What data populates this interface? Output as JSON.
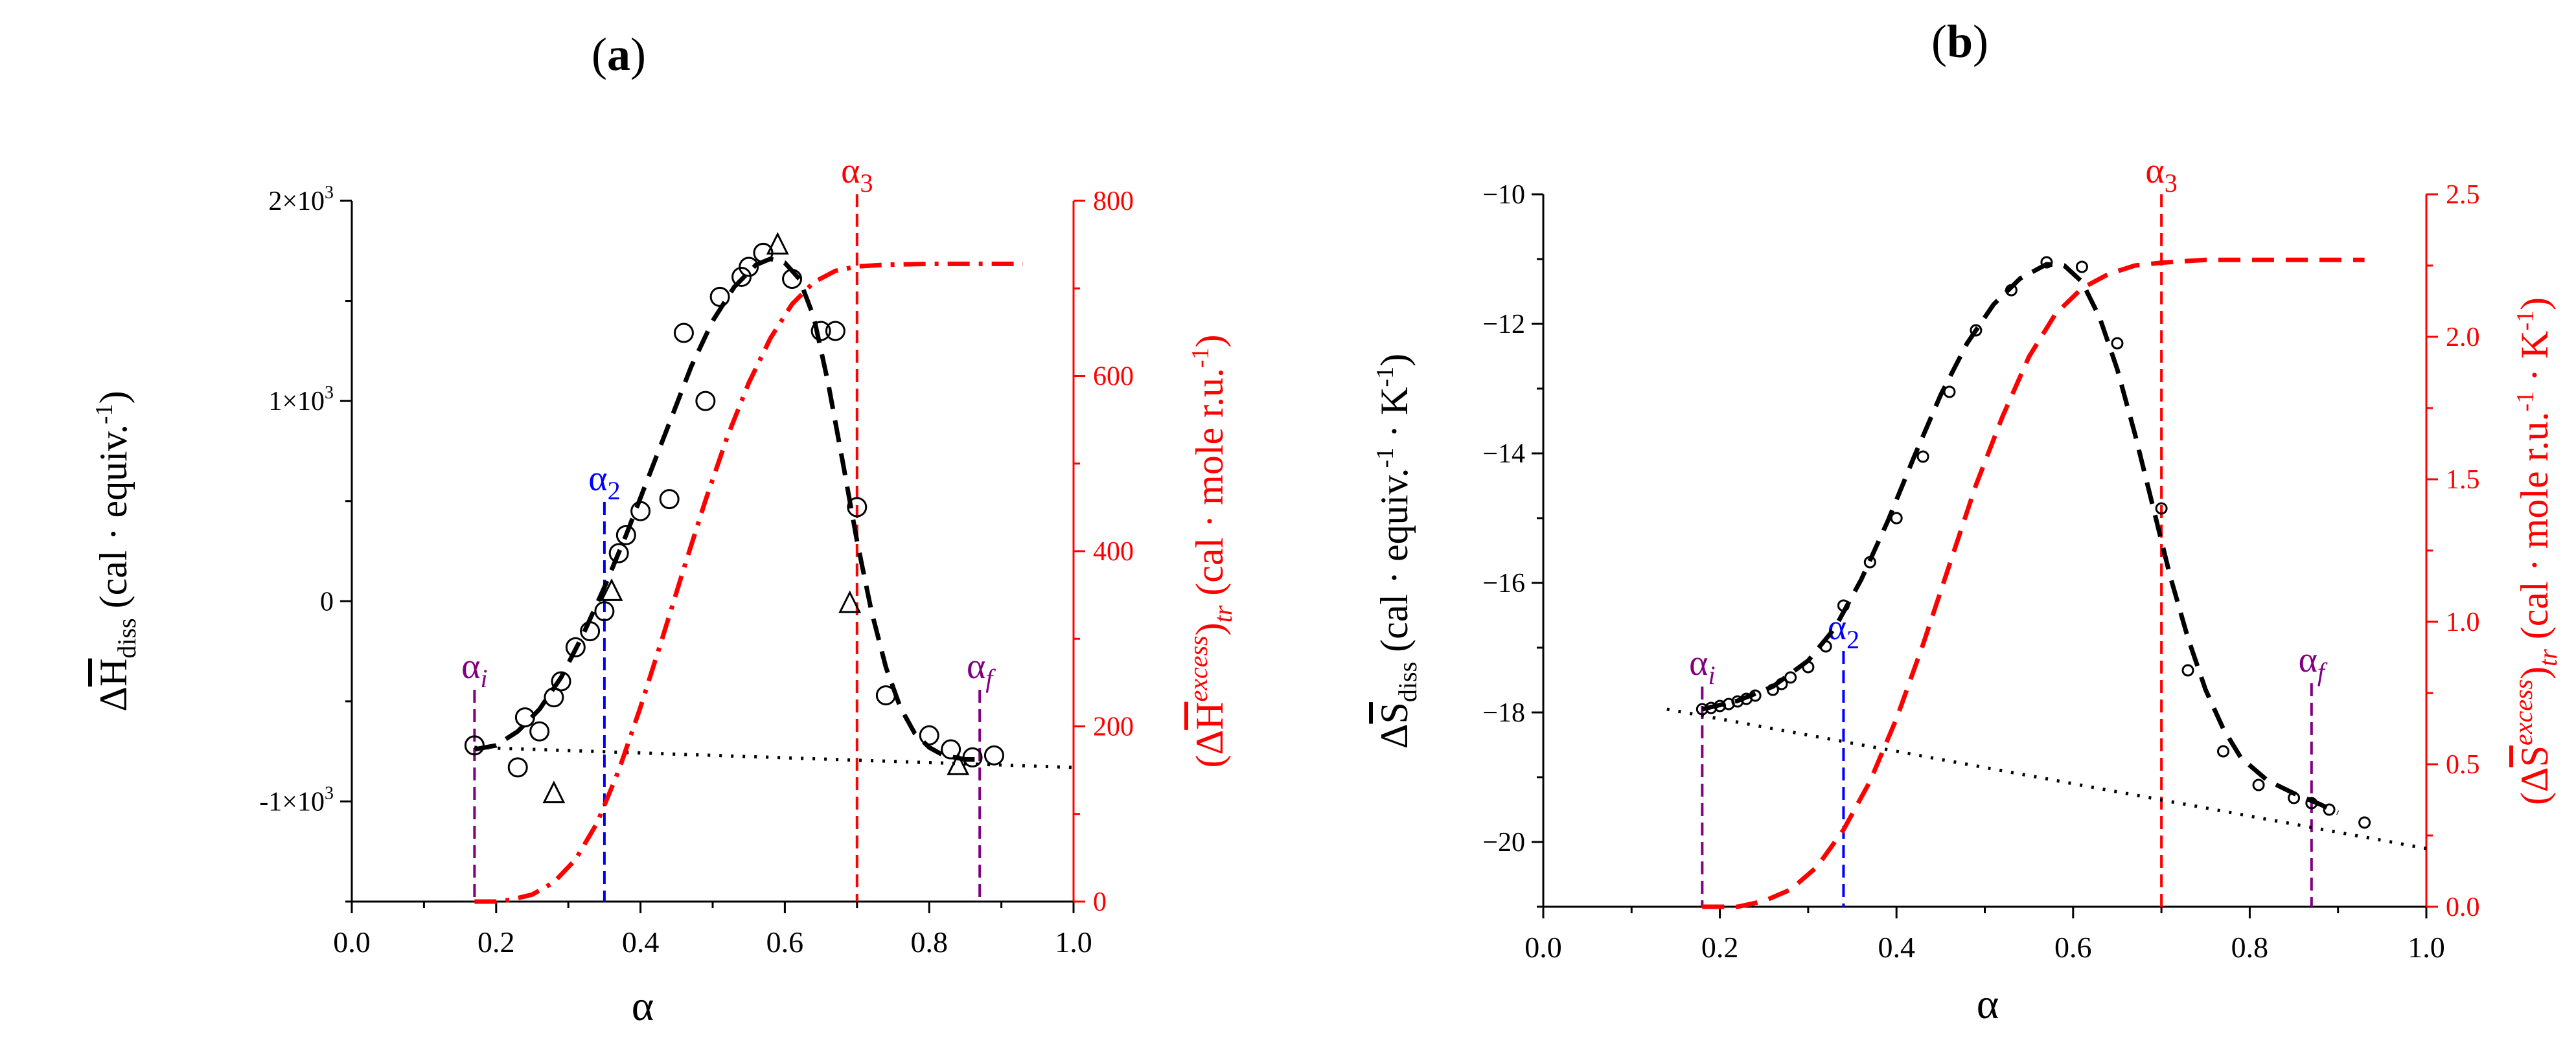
{
  "chart_data": [
    {
      "panel": "a",
      "panel_label": {
        "open": "(",
        "letter": "a",
        "close": ")"
      },
      "type": "scatter",
      "x_label": "α",
      "x_range": [
        0.0,
        1.0
      ],
      "x_ticks": [
        0.0,
        0.2,
        0.4,
        0.6,
        0.8,
        1.0
      ],
      "x_tick_labels": [
        "0.0",
        "0.2",
        "0.4",
        "0.6",
        "0.8",
        "1.0"
      ],
      "y_left_range": [
        -1500,
        2000
      ],
      "y_left_ticks": [
        -1000,
        0,
        1000,
        2000
      ],
      "y_left_tick_labels": [
        {
          "base": "-1×10",
          "exp": "3"
        },
        {
          "base": "0",
          "exp": ""
        },
        {
          "base": "1×10",
          "exp": "3"
        },
        {
          "base": "2×10",
          "exp": "3"
        }
      ],
      "y_left_label": {
        "prefix": "Δ",
        "symbol": "H",
        "sub": "diss",
        "units": " (cal · equiv.",
        "units_exp": "-1",
        "units_close": ")"
      },
      "y_right_range": [
        0,
        800
      ],
      "y_right_ticks": [
        0,
        200,
        400,
        600,
        800
      ],
      "y_right_tick_labels": [
        "0",
        "200",
        "400",
        "600",
        "800"
      ],
      "y_right_label": {
        "open": "(Δ",
        "symbol": "H",
        "sup": "excess",
        "close": ")",
        "sub": "tr",
        "units": " (cal · mole r.u.",
        "units_exp": "-1",
        "units_close": ")"
      },
      "series": [
        {
          "name": "circles",
          "marker": "circle",
          "points": [
            [
              0.17,
              -720
            ],
            [
              0.23,
              -830
            ],
            [
              0.24,
              -580
            ],
            [
              0.26,
              -650
            ],
            [
              0.28,
              -480
            ],
            [
              0.29,
              -400
            ],
            [
              0.31,
              -230
            ],
            [
              0.33,
              -150
            ],
            [
              0.35,
              -50
            ],
            [
              0.37,
              240
            ],
            [
              0.38,
              330
            ],
            [
              0.4,
              450
            ],
            [
              0.44,
              510
            ],
            [
              0.46,
              1340
            ],
            [
              0.49,
              1000
            ],
            [
              0.51,
              1520
            ],
            [
              0.54,
              1620
            ],
            [
              0.55,
              1670
            ],
            [
              0.57,
              1740
            ],
            [
              0.61,
              1610
            ],
            [
              0.65,
              1350
            ],
            [
              0.67,
              1350
            ],
            [
              0.7,
              470
            ],
            [
              0.74,
              -470
            ],
            [
              0.8,
              -670
            ],
            [
              0.83,
              -740
            ],
            [
              0.86,
              -780
            ],
            [
              0.89,
              -770
            ]
          ]
        },
        {
          "name": "triangles",
          "marker": "triangle",
          "points": [
            [
              0.28,
              -960
            ],
            [
              0.36,
              50
            ],
            [
              0.59,
              1780
            ],
            [
              0.69,
              -10
            ],
            [
              0.84,
              -820
            ]
          ]
        },
        {
          "name": "ΔH_diss fit",
          "style": "dashed",
          "axis": "left",
          "points": [
            [
              0.17,
              -740
            ],
            [
              0.2,
              -720
            ],
            [
              0.23,
              -650
            ],
            [
              0.26,
              -540
            ],
            [
              0.29,
              -380
            ],
            [
              0.32,
              -170
            ],
            [
              0.35,
              70
            ],
            [
              0.38,
              330
            ],
            [
              0.41,
              610
            ],
            [
              0.44,
              890
            ],
            [
              0.47,
              1170
            ],
            [
              0.5,
              1400
            ],
            [
              0.53,
              1570
            ],
            [
              0.56,
              1680
            ],
            [
              0.58,
              1710
            ],
            [
              0.6,
              1690
            ],
            [
              0.62,
              1610
            ],
            [
              0.64,
              1420
            ],
            [
              0.66,
              1090
            ],
            [
              0.68,
              700
            ],
            [
              0.7,
              300
            ],
            [
              0.72,
              -50
            ],
            [
              0.74,
              -330
            ],
            [
              0.76,
              -530
            ],
            [
              0.78,
              -660
            ],
            [
              0.8,
              -730
            ],
            [
              0.82,
              -770
            ],
            [
              0.85,
              -790
            ],
            [
              0.87,
              -790
            ]
          ]
        },
        {
          "name": "baseline",
          "style": "dotted",
          "axis": "left",
          "points": [
            [
              0.17,
              -730
            ],
            [
              1.0,
              -830
            ]
          ]
        },
        {
          "name": "(ΔH excess)_tr",
          "style": "dash-dot",
          "axis": "right",
          "color": "#ff0000",
          "points": [
            [
              0.17,
              0
            ],
            [
              0.2,
              0
            ],
            [
              0.22,
              2
            ],
            [
              0.25,
              8
            ],
            [
              0.28,
              22
            ],
            [
              0.31,
              48
            ],
            [
              0.34,
              90
            ],
            [
              0.37,
              150
            ],
            [
              0.4,
              222
            ],
            [
              0.43,
              300
            ],
            [
              0.46,
              380
            ],
            [
              0.49,
              458
            ],
            [
              0.52,
              530
            ],
            [
              0.55,
              592
            ],
            [
              0.58,
              643
            ],
            [
              0.61,
              682
            ],
            [
              0.64,
              707
            ],
            [
              0.67,
              720
            ],
            [
              0.7,
              725
            ],
            [
              0.74,
              727
            ],
            [
              0.8,
              728
            ],
            [
              0.88,
              728
            ],
            [
              0.93,
              728
            ]
          ]
        }
      ],
      "annotations": [
        {
          "x": 0.17,
          "color": "#800080",
          "base": "α",
          "sub": "i"
        },
        {
          "x": 0.35,
          "color": "#0000ff",
          "base": "α",
          "sub": "2"
        },
        {
          "x": 0.7,
          "color": "#ff0000",
          "base": "α",
          "sub": "3"
        },
        {
          "x": 0.87,
          "color": "#800080",
          "base": "α",
          "sub": "f"
        }
      ]
    },
    {
      "panel": "b",
      "panel_label": {
        "open": "(",
        "letter": "b",
        "close": ")"
      },
      "type": "scatter",
      "x_label": "α",
      "x_range": [
        0.0,
        1.0
      ],
      "x_ticks": [
        0.0,
        0.2,
        0.4,
        0.6,
        0.8,
        1.0
      ],
      "x_tick_labels": [
        "0.0",
        "0.2",
        "0.4",
        "0.6",
        "0.8",
        "1.0"
      ],
      "y_left_range": [
        -21,
        -10
      ],
      "y_left_ticks": [
        -20,
        -18,
        -16,
        -14,
        -12,
        -10
      ],
      "y_left_tick_labels": [
        "−20",
        "−18",
        "−16",
        "−14",
        "−12",
        "−10"
      ],
      "y_left_label": {
        "prefix": "Δ",
        "symbol": "S",
        "sub": "diss",
        "units": "  (cal · equiv.",
        "units_exp": "-1",
        "units_mid": " · K",
        "units_exp2": "-1",
        "units_close": ")"
      },
      "y_right_range": [
        0.0,
        2.5
      ],
      "y_right_ticks": [
        0.0,
        0.5,
        1.0,
        1.5,
        2.0,
        2.5
      ],
      "y_right_tick_labels": [
        "0.0",
        "0.5",
        "1.0",
        "1.5",
        "2.0",
        "2.5"
      ],
      "y_right_label": {
        "open": "(Δ",
        "symbol": "S",
        "sup": "excess",
        "close": ")",
        "sub": "tr",
        "units": "  (cal · mole r.u.",
        "units_exp": "-1",
        "units_mid": " · K",
        "units_exp2": "-1",
        "units_close": ")"
      },
      "series": [
        {
          "name": "circles",
          "marker": "circle",
          "points": [
            [
              0.18,
              -17.95
            ],
            [
              0.19,
              -17.93
            ],
            [
              0.2,
              -17.9
            ],
            [
              0.21,
              -17.87
            ],
            [
              0.22,
              -17.83
            ],
            [
              0.23,
              -17.79
            ],
            [
              0.24,
              -17.74
            ],
            [
              0.26,
              -17.65
            ],
            [
              0.27,
              -17.56
            ],
            [
              0.28,
              -17.46
            ],
            [
              0.3,
              -17.3
            ],
            [
              0.32,
              -16.98
            ],
            [
              0.34,
              -16.35
            ],
            [
              0.37,
              -15.68
            ],
            [
              0.4,
              -15.0
            ],
            [
              0.43,
              -14.05
            ],
            [
              0.46,
              -13.05
            ],
            [
              0.49,
              -12.1
            ],
            [
              0.53,
              -11.48
            ],
            [
              0.57,
              -11.05
            ],
            [
              0.61,
              -11.12
            ],
            [
              0.65,
              -12.3
            ],
            [
              0.7,
              -14.85
            ],
            [
              0.73,
              -17.35
            ],
            [
              0.77,
              -18.6
            ],
            [
              0.81,
              -19.12
            ],
            [
              0.85,
              -19.32
            ],
            [
              0.87,
              -19.4
            ],
            [
              0.89,
              -19.5
            ],
            [
              0.93,
              -19.7
            ]
          ]
        },
        {
          "name": "ΔS_diss fit",
          "style": "dashed",
          "axis": "left",
          "points": [
            [
              0.18,
              -17.95
            ],
            [
              0.22,
              -17.82
            ],
            [
              0.26,
              -17.6
            ],
            [
              0.3,
              -17.2
            ],
            [
              0.33,
              -16.7
            ],
            [
              0.36,
              -15.95
            ],
            [
              0.39,
              -15.05
            ],
            [
              0.42,
              -14.05
            ],
            [
              0.45,
              -13.1
            ],
            [
              0.48,
              -12.3
            ],
            [
              0.51,
              -11.7
            ],
            [
              0.54,
              -11.3
            ],
            [
              0.57,
              -11.08
            ],
            [
              0.59,
              -11.1
            ],
            [
              0.61,
              -11.35
            ],
            [
              0.63,
              -11.9
            ],
            [
              0.65,
              -12.7
            ],
            [
              0.67,
              -13.7
            ],
            [
              0.69,
              -14.8
            ],
            [
              0.71,
              -15.9
            ],
            [
              0.73,
              -16.85
            ],
            [
              0.75,
              -17.65
            ],
            [
              0.77,
              -18.25
            ],
            [
              0.79,
              -18.7
            ],
            [
              0.82,
              -19.05
            ],
            [
              0.85,
              -19.25
            ],
            [
              0.88,
              -19.42
            ],
            [
              0.9,
              -19.55
            ]
          ]
        },
        {
          "name": "baseline",
          "style": "dotted",
          "axis": "left",
          "points": [
            [
              0.14,
              -17.95
            ],
            [
              1.0,
              -20.1
            ]
          ]
        },
        {
          "name": "(ΔS excess)_tr",
          "style": "dashed",
          "axis": "right",
          "color": "#ff0000",
          "points": [
            [
              0.18,
              0.0
            ],
            [
              0.22,
              0.0
            ],
            [
              0.25,
              0.02
            ],
            [
              0.28,
              0.06
            ],
            [
              0.31,
              0.14
            ],
            [
              0.34,
              0.27
            ],
            [
              0.37,
              0.44
            ],
            [
              0.4,
              0.66
            ],
            [
              0.43,
              0.92
            ],
            [
              0.46,
              1.2
            ],
            [
              0.49,
              1.48
            ],
            [
              0.52,
              1.72
            ],
            [
              0.55,
              1.93
            ],
            [
              0.58,
              2.08
            ],
            [
              0.61,
              2.17
            ],
            [
              0.64,
              2.22
            ],
            [
              0.67,
              2.25
            ],
            [
              0.7,
              2.26
            ],
            [
              0.75,
              2.27
            ],
            [
              0.85,
              2.27
            ],
            [
              0.93,
              2.27
            ]
          ]
        }
      ],
      "annotations": [
        {
          "x": 0.18,
          "color": "#800080",
          "base": "α",
          "sub": "i"
        },
        {
          "x": 0.34,
          "color": "#0000ff",
          "base": "α",
          "sub": "2"
        },
        {
          "x": 0.7,
          "color": "#ff0000",
          "base": "α",
          "sub": "3"
        },
        {
          "x": 0.87,
          "color": "#800080",
          "base": "α",
          "sub": "f"
        }
      ]
    }
  ]
}
